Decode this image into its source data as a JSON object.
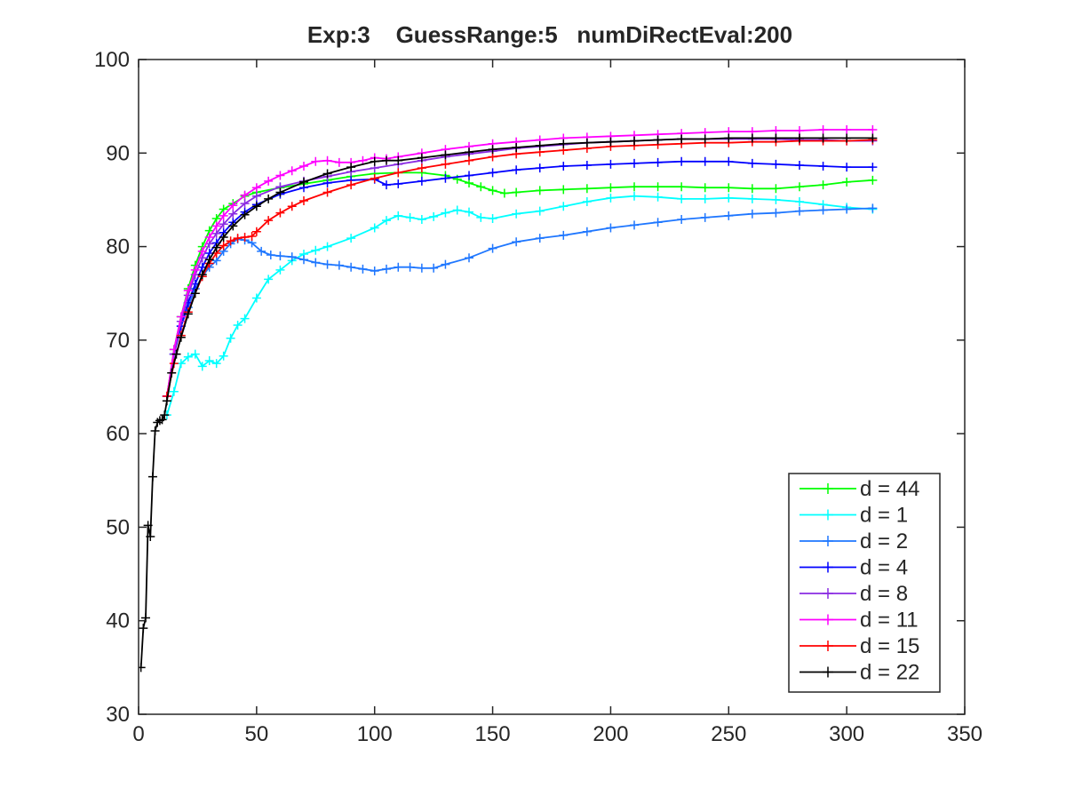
{
  "chart_data": {
    "type": "line",
    "title": "Exp:3    GuessRange:5   numDiRectEval:200",
    "xlabel": "",
    "ylabel": "",
    "xlim": [
      0,
      350
    ],
    "ylim": [
      30,
      100
    ],
    "xticks": [
      0,
      50,
      100,
      150,
      200,
      250,
      300,
      350
    ],
    "yticks": [
      30,
      40,
      50,
      60,
      70,
      80,
      90,
      100
    ],
    "xtick_labels": [
      "0",
      "50",
      "100",
      "150",
      "200",
      "250",
      "300",
      "350"
    ],
    "ytick_labels": [
      "30",
      "40",
      "50",
      "60",
      "70",
      "80",
      "90",
      "100"
    ],
    "grid": false,
    "legend_position": "bottom-right",
    "marker": "+",
    "series": [
      {
        "name": "d = 44",
        "color": "#00ff00",
        "x": [
          12,
          15,
          18,
          21,
          24,
          27,
          30,
          33,
          36,
          40,
          45,
          50,
          60,
          70,
          80,
          90,
          100,
          110,
          120,
          130,
          135,
          140,
          145,
          150,
          155,
          160,
          170,
          180,
          190,
          200,
          210,
          220,
          230,
          240,
          250,
          260,
          270,
          280,
          290,
          300,
          311
        ],
        "y": [
          64,
          69,
          72.5,
          75.5,
          78,
          80,
          81.7,
          83,
          84,
          84.6,
          85.4,
          85.8,
          86.3,
          86.7,
          87.1,
          87.5,
          87.8,
          87.9,
          87.9,
          87.6,
          87.2,
          86.8,
          86.4,
          86,
          85.7,
          85.8,
          86,
          86.1,
          86.2,
          86.3,
          86.4,
          86.4,
          86.4,
          86.3,
          86.3,
          86.2,
          86.2,
          86.4,
          86.6,
          86.9,
          87.1
        ]
      },
      {
        "name": "d = 1",
        "color": "#00ffff",
        "x": [
          12,
          15,
          18,
          21,
          24,
          27,
          30,
          33,
          36,
          39,
          42,
          45,
          50,
          55,
          60,
          65,
          70,
          75,
          80,
          90,
          100,
          105,
          110,
          115,
          120,
          125,
          130,
          135,
          140,
          145,
          150,
          160,
          170,
          180,
          190,
          200,
          210,
          220,
          230,
          240,
          250,
          260,
          270,
          280,
          290,
          300,
          311
        ],
        "y": [
          62,
          64.5,
          67.5,
          68.2,
          68.5,
          67.2,
          67.8,
          67.5,
          68.3,
          70.2,
          71.6,
          72.3,
          74.5,
          76.5,
          77.5,
          78.5,
          79.2,
          79.6,
          80,
          80.9,
          82,
          82.8,
          83.3,
          83.1,
          82.9,
          83.2,
          83.6,
          83.9,
          83.7,
          83.1,
          83,
          83.5,
          83.8,
          84.3,
          84.8,
          85.2,
          85.4,
          85.3,
          85.1,
          85.1,
          85.2,
          85.1,
          85,
          84.8,
          84.5,
          84.2,
          84
        ]
      },
      {
        "name": "d = 2",
        "color": "#1f77ff",
        "x": [
          12,
          15,
          18,
          21,
          24,
          27,
          30,
          33,
          36,
          39,
          42,
          45,
          48,
          52,
          56,
          60,
          65,
          70,
          75,
          80,
          85,
          90,
          95,
          100,
          105,
          110,
          115,
          120,
          125,
          130,
          140,
          150,
          160,
          170,
          180,
          190,
          200,
          210,
          220,
          230,
          240,
          250,
          260,
          270,
          280,
          290,
          300,
          311
        ],
        "y": [
          64,
          68.5,
          71.5,
          73.5,
          75.5,
          76.8,
          77.8,
          78.5,
          79.5,
          80.3,
          80.8,
          80.7,
          80.4,
          79.5,
          79.1,
          79,
          78.9,
          78.6,
          78.3,
          78.1,
          78,
          77.8,
          77.6,
          77.4,
          77.6,
          77.8,
          77.8,
          77.7,
          77.7,
          78.1,
          78.8,
          79.8,
          80.5,
          80.9,
          81.2,
          81.6,
          82,
          82.3,
          82.6,
          82.9,
          83.1,
          83.3,
          83.5,
          83.6,
          83.8,
          83.9,
          84,
          84.1
        ]
      },
      {
        "name": "d = 4",
        "color": "#0000ff",
        "x": [
          12,
          15,
          18,
          21,
          24,
          27,
          30,
          33,
          36,
          40,
          45,
          50,
          60,
          70,
          80,
          90,
          100,
          105,
          110,
          120,
          130,
          140,
          150,
          160,
          170,
          180,
          190,
          200,
          210,
          220,
          230,
          240,
          250,
          260,
          270,
          280,
          290,
          300,
          311
        ],
        "y": [
          64,
          68.5,
          71.5,
          74,
          76,
          77.8,
          79.3,
          80.4,
          81.5,
          82.6,
          83.7,
          84.5,
          85.6,
          86.3,
          86.8,
          87.1,
          87.2,
          86.6,
          86.7,
          87,
          87.3,
          87.6,
          87.9,
          88.2,
          88.4,
          88.6,
          88.7,
          88.8,
          88.9,
          89,
          89.1,
          89.1,
          89.1,
          88.9,
          88.8,
          88.7,
          88.6,
          88.5,
          88.5
        ]
      },
      {
        "name": "d = 8",
        "color": "#8a2be2",
        "x": [
          12,
          15,
          18,
          21,
          24,
          27,
          30,
          33,
          36,
          40,
          45,
          50,
          60,
          70,
          80,
          90,
          100,
          110,
          120,
          130,
          140,
          150,
          160,
          170,
          180,
          190,
          200,
          210,
          220,
          230,
          240,
          250,
          260,
          270,
          280,
          290,
          300,
          311
        ],
        "y": [
          64,
          68.5,
          72,
          74.8,
          77,
          78.8,
          80.3,
          81.4,
          82.4,
          83.5,
          84.6,
          85.4,
          86.4,
          87,
          87.5,
          88,
          88.4,
          88.8,
          89.2,
          89.6,
          89.9,
          90.2,
          90.5,
          90.7,
          90.9,
          91.1,
          91.2,
          91.3,
          91.4,
          91.5,
          91.5,
          91.5,
          91.5,
          91.5,
          91.4,
          91.4,
          91.3,
          91.3
        ]
      },
      {
        "name": "d = 11",
        "color": "#ff00ff",
        "x": [
          12,
          15,
          18,
          21,
          24,
          27,
          30,
          33,
          36,
          40,
          45,
          50,
          55,
          60,
          65,
          70,
          75,
          80,
          85,
          90,
          95,
          100,
          105,
          110,
          120,
          130,
          140,
          150,
          160,
          170,
          180,
          190,
          200,
          210,
          220,
          230,
          240,
          250,
          260,
          270,
          280,
          290,
          300,
          311
        ],
        "y": [
          64,
          69,
          72.5,
          75.3,
          77.5,
          79.5,
          81,
          82.2,
          83.3,
          84.4,
          85.5,
          86.3,
          87,
          87.6,
          88.1,
          88.6,
          89.1,
          89.2,
          89,
          89,
          89.2,
          89.5,
          89.4,
          89.6,
          90,
          90.4,
          90.7,
          91,
          91.2,
          91.4,
          91.6,
          91.7,
          91.8,
          91.9,
          92,
          92.1,
          92.2,
          92.3,
          92.3,
          92.4,
          92.4,
          92.5,
          92.5,
          92.5
        ]
      },
      {
        "name": "d = 15",
        "color": "#ff0000",
        "x": [
          12,
          15,
          18,
          21,
          24,
          27,
          30,
          33,
          36,
          39,
          42,
          45,
          48,
          50,
          55,
          60,
          65,
          70,
          80,
          90,
          100,
          110,
          120,
          130,
          140,
          150,
          160,
          170,
          180,
          190,
          200,
          210,
          220,
          230,
          240,
          250,
          260,
          270,
          280,
          290,
          300,
          311
        ],
        "y": [
          64,
          67.5,
          70.5,
          73,
          75,
          76.8,
          78.2,
          79.3,
          80.1,
          80.6,
          80.9,
          81,
          81.1,
          81.6,
          82.8,
          83.6,
          84.3,
          84.9,
          85.8,
          86.6,
          87.3,
          87.9,
          88.4,
          88.8,
          89.2,
          89.6,
          89.9,
          90.1,
          90.3,
          90.5,
          90.7,
          90.8,
          90.9,
          91,
          91.1,
          91.1,
          91.2,
          91.2,
          91.3,
          91.3,
          91.3,
          91.4
        ]
      },
      {
        "name": "d = 22",
        "color": "#000000",
        "x": [
          1,
          2,
          3,
          4,
          5,
          6,
          7,
          8,
          9,
          10,
          11,
          12,
          14,
          16,
          18,
          21,
          24,
          27,
          30,
          33,
          36,
          40,
          45,
          50,
          55,
          60,
          70,
          80,
          90,
          100,
          105,
          110,
          120,
          130,
          140,
          150,
          160,
          170,
          180,
          190,
          200,
          210,
          220,
          230,
          240,
          250,
          260,
          270,
          280,
          290,
          300,
          311
        ],
        "y": [
          35,
          39.2,
          40.3,
          50.2,
          49,
          55.4,
          60.3,
          61.2,
          61.4,
          61.5,
          62,
          63.5,
          66.5,
          68.5,
          70.3,
          72.8,
          75,
          77,
          78.6,
          79.9,
          81,
          82.2,
          83.4,
          84.3,
          85.1,
          85.8,
          86.9,
          87.8,
          88.5,
          89.1,
          89.2,
          89.2,
          89.5,
          89.8,
          90.1,
          90.4,
          90.6,
          90.8,
          91,
          91.1,
          91.2,
          91.3,
          91.4,
          91.5,
          91.5,
          91.6,
          91.6,
          91.6,
          91.6,
          91.6,
          91.6,
          91.6
        ]
      }
    ]
  }
}
